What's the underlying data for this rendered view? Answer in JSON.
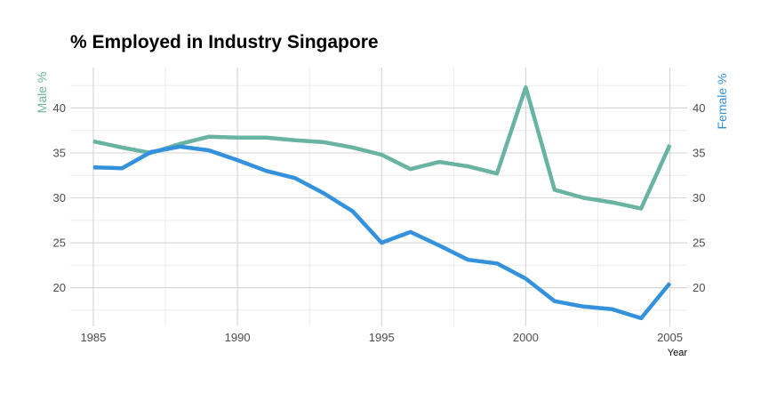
{
  "chart_data": {
    "type": "line",
    "title": "% Employed in Industry Singapore",
    "xlabel": "Year",
    "ylabel_left": "Male %",
    "ylabel_right": "Female %",
    "xlim": [
      1984.2,
      2005.6
    ],
    "ylim": [
      15.7,
      44.5
    ],
    "x_ticks": [
      1985,
      1990,
      1995,
      2000,
      2005
    ],
    "y_ticks": [
      20,
      25,
      30,
      35,
      40
    ],
    "grid": true,
    "colors": {
      "male": "#69b3a2",
      "female": "#3391dd"
    },
    "x": [
      1985,
      1986,
      1987,
      1988,
      1989,
      1990,
      1991,
      1992,
      1993,
      1994,
      1995,
      1996,
      1997,
      1998,
      1999,
      2000,
      2001,
      2002,
      2003,
      2004,
      2005
    ],
    "series": [
      {
        "name": "Male %",
        "axis": "left",
        "values": [
          36.3,
          35.6,
          35.0,
          36.0,
          36.8,
          36.7,
          36.7,
          36.4,
          36.2,
          35.6,
          34.8,
          33.2,
          34.0,
          33.5,
          32.7,
          42.3,
          30.9,
          30.0,
          29.5,
          28.8,
          35.9
        ]
      },
      {
        "name": "Female %",
        "axis": "right",
        "values": [
          33.4,
          33.3,
          35.1,
          35.7,
          35.3,
          34.2,
          33.0,
          32.2,
          30.5,
          28.5,
          25.0,
          26.2,
          24.7,
          23.1,
          22.7,
          21.0,
          18.5,
          17.9,
          17.6,
          16.6,
          20.5
        ]
      }
    ]
  }
}
